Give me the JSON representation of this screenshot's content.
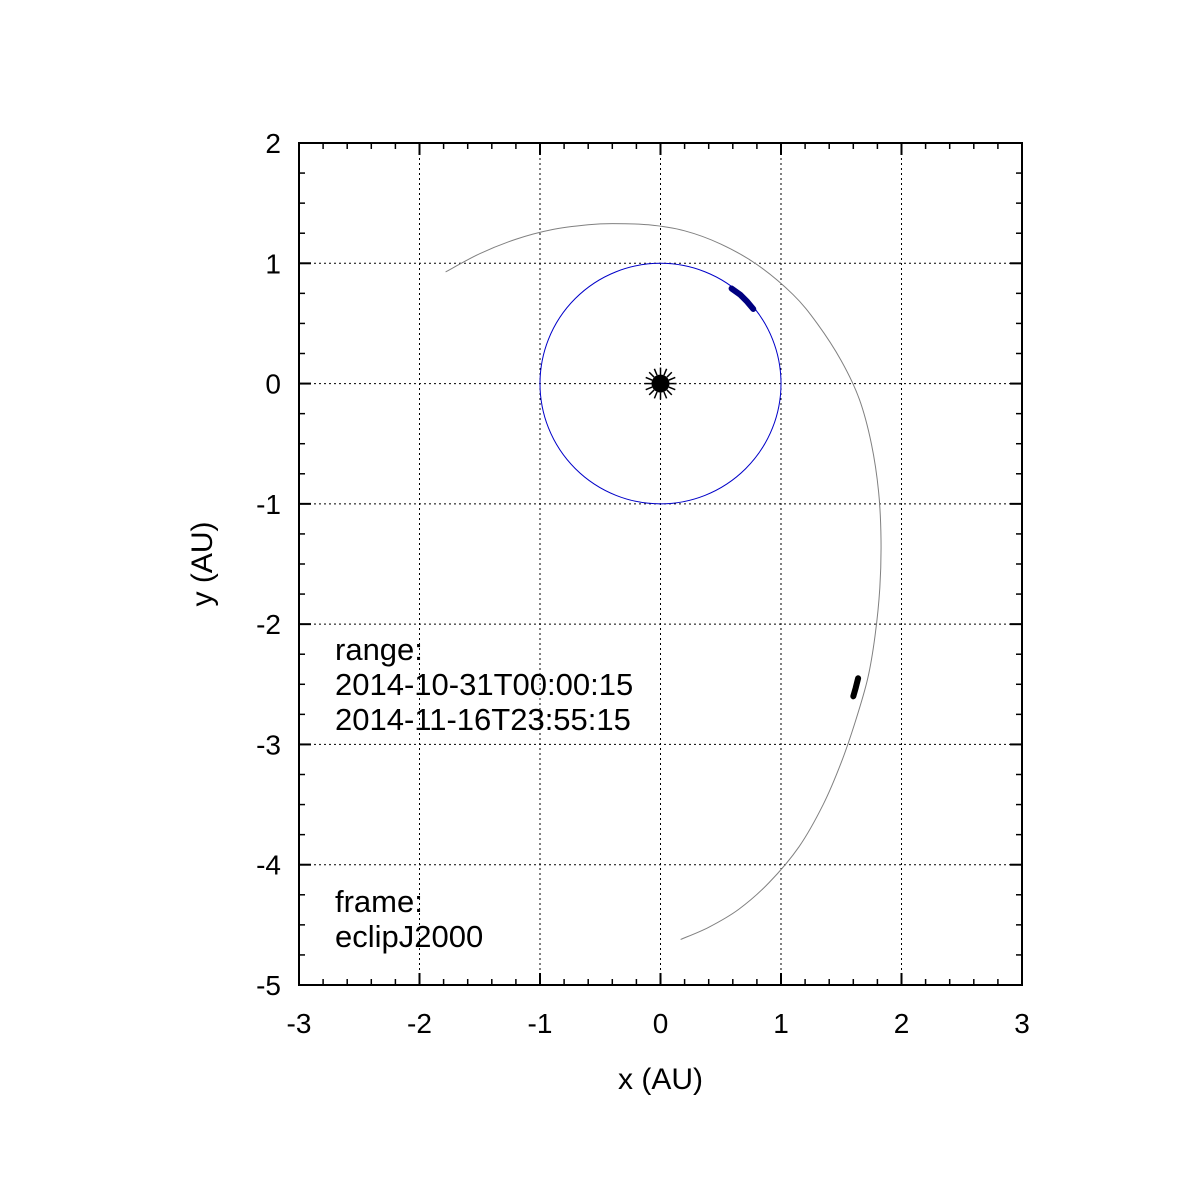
{
  "chart_data": {
    "type": "line",
    "title": "",
    "xlabel": "x (AU)",
    "ylabel": "y (AU)",
    "xlim": [
      -3,
      3
    ],
    "ylim": [
      -5,
      2
    ],
    "xticks": [
      -3,
      -2,
      -1,
      0,
      1,
      2,
      3
    ],
    "yticks": [
      2,
      1,
      0,
      -1,
      -2,
      -3,
      -4,
      -5
    ],
    "grid": true,
    "colors": {
      "earth_orbit": "#0000c8",
      "earth_segment": "#000080",
      "object_orbit": "#808080",
      "object_segment": "#000000",
      "sun": "#000000"
    },
    "sun": {
      "x": 0,
      "y": 0,
      "icon": "sun-icon"
    },
    "series": [
      {
        "x": [
          1.0,
          0.866,
          0.5,
          0.0,
          -0.5,
          -0.866,
          -1.0,
          -0.866,
          -0.5,
          0.0,
          0.5,
          0.866,
          1.0
        ],
        "y": [
          0.0,
          0.5,
          0.866,
          1.0,
          0.866,
          0.5,
          0.0,
          -0.5,
          -0.866,
          -1.0,
          -0.866,
          -0.5,
          0.0
        ]
      },
      {
        "x": [
          0.59,
          0.66,
          0.72,
          0.77
        ],
        "y": [
          0.79,
          0.74,
          0.68,
          0.62
        ]
      },
      {
        "x": [
          -1.78,
          -1.5,
          -1.2,
          -0.9,
          -0.6,
          -0.4,
          -0.1,
          0.2,
          0.5,
          0.8,
          1.1,
          1.3,
          1.5,
          1.65,
          1.75,
          1.81,
          1.83,
          1.82,
          1.78,
          1.72,
          1.62,
          1.5,
          1.35,
          1.15,
          0.9,
          0.65,
          0.4,
          0.17
        ],
        "y": [
          0.93,
          1.08,
          1.2,
          1.28,
          1.32,
          1.33,
          1.32,
          1.27,
          1.16,
          0.99,
          0.74,
          0.5,
          0.19,
          -0.13,
          -0.5,
          -0.9,
          -1.3,
          -1.7,
          -2.1,
          -2.45,
          -2.8,
          -3.15,
          -3.5,
          -3.85,
          -4.15,
          -4.37,
          -4.52,
          -4.62
        ]
      },
      {
        "x": [
          1.6,
          1.62,
          1.64
        ],
        "y": [
          -2.6,
          -2.53,
          -2.45
        ]
      }
    ],
    "annotations": [
      {
        "lines": [
          "range:",
          "  2014-10-31T00:00:15",
          "  2014-11-16T23:55:15"
        ]
      },
      {
        "lines": [
          "frame:",
          "  eclipJ2000"
        ]
      }
    ]
  }
}
